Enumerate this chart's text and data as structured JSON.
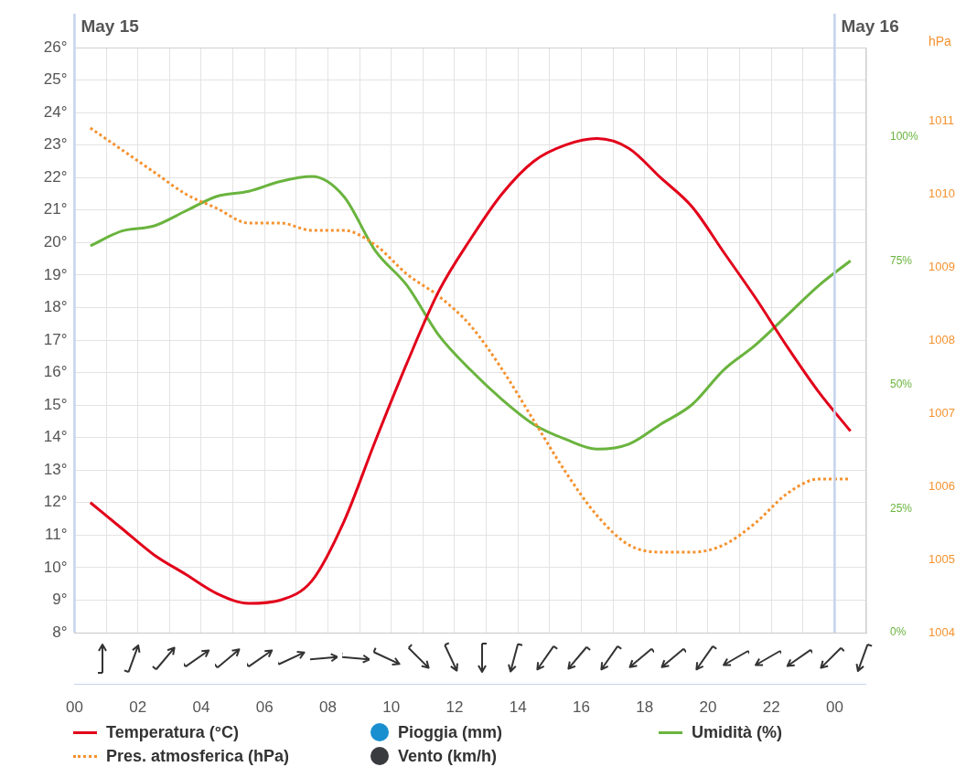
{
  "chart_data": {
    "type": "line",
    "grid": true,
    "legend": "bottom",
    "marker": "none",
    "x": [
      0.5,
      1.5,
      2.5,
      3.5,
      4.5,
      5.5,
      6.5,
      7.5,
      8.5,
      9.5,
      10.5,
      11.5,
      12.5,
      13.5,
      14.5,
      15.5,
      16.5,
      17.5,
      18.5,
      19.5,
      20.5,
      21.5,
      22.5,
      23.5,
      24.5
    ],
    "xlim": [
      0,
      25
    ],
    "xticks": [
      {
        "value": 0,
        "label": "00"
      },
      {
        "value": 1,
        "label": null
      },
      {
        "value": 2,
        "label": "02"
      },
      {
        "value": 3,
        "label": null
      },
      {
        "value": 4,
        "label": "04"
      },
      {
        "value": 5,
        "label": null
      },
      {
        "value": 6,
        "label": "06"
      },
      {
        "value": 7,
        "label": null
      },
      {
        "value": 8,
        "label": "08"
      },
      {
        "value": 9,
        "label": null
      },
      {
        "value": 10,
        "label": "10"
      },
      {
        "value": 11,
        "label": null
      },
      {
        "value": 12,
        "label": "12"
      },
      {
        "value": 13,
        "label": null
      },
      {
        "value": 14,
        "label": "14"
      },
      {
        "value": 15,
        "label": null
      },
      {
        "value": 16,
        "label": "16"
      },
      {
        "value": 17,
        "label": null
      },
      {
        "value": 18,
        "label": "18"
      },
      {
        "value": 19,
        "label": null
      },
      {
        "value": 20,
        "label": "20"
      },
      {
        "value": 21,
        "label": null
      },
      {
        "value": 22,
        "label": "22"
      },
      {
        "value": 23,
        "label": null
      },
      {
        "value": 24,
        "label": "00"
      },
      {
        "value": 25,
        "label": null
      }
    ],
    "ylim": [
      8,
      26
    ],
    "yticks": [
      {
        "value": 8,
        "label": "8°"
      },
      {
        "value": 9,
        "label": "9°"
      },
      {
        "value": 10,
        "label": "10°"
      },
      {
        "value": 11,
        "label": "11°"
      },
      {
        "value": 12,
        "label": "12°"
      },
      {
        "value": 13,
        "label": "13°"
      },
      {
        "value": 14,
        "label": "14°"
      },
      {
        "value": 15,
        "label": "15°"
      },
      {
        "value": 16,
        "label": "16°"
      },
      {
        "value": 17,
        "label": "17°"
      },
      {
        "value": 18,
        "label": "18°"
      },
      {
        "value": 19,
        "label": "19°"
      },
      {
        "value": 20,
        "label": "20°"
      },
      {
        "value": 21,
        "label": "21°"
      },
      {
        "value": 22,
        "label": "22°"
      },
      {
        "value": 23,
        "label": "23°"
      },
      {
        "value": 24,
        "label": "24°"
      },
      {
        "value": 25,
        "label": "25°"
      },
      {
        "value": 26,
        "label": "26°"
      }
    ],
    "y2label": "hPa",
    "y2lim": [
      1004,
      1012
    ],
    "y2ticks": [
      1004,
      1005,
      1006,
      1007,
      1008,
      1009,
      1010,
      1011
    ],
    "y3lim": [
      0,
      118
    ],
    "y3ticks": [
      {
        "value": 0,
        "label": "0%"
      },
      {
        "value": 25,
        "label": "25%"
      },
      {
        "value": 50,
        "label": "50%"
      },
      {
        "value": 75,
        "label": "75%"
      },
      {
        "value": 100,
        "label": "100%"
      }
    ],
    "annotations": [
      "May 15"
    ],
    "ref_lines": [
      {
        "axis": "x",
        "value": 24,
        "label": "May 16",
        "color": "#c5d3ec"
      }
    ],
    "series": [
      {
        "name": "Temperatura (°C)",
        "color": "#e2001a",
        "values": [
          12.0,
          11.2,
          10.4,
          9.8,
          9.2,
          8.9,
          9.0,
          9.6,
          11.4,
          13.9,
          16.3,
          18.5,
          20.1,
          21.5,
          22.5,
          23.0,
          23.2,
          22.9,
          22.0,
          21.1,
          19.7,
          18.3,
          16.8,
          15.4,
          14.2
        ]
      },
      {
        "name": "Pres. atmosferica (hPa)",
        "color": "#f5922f",
        "axis": "y2",
        "line_style": "dotted",
        "values": [
          1010.9,
          1010.6,
          1010.3,
          1010.0,
          1009.8,
          1009.6,
          1009.6,
          1009.5,
          1009.5,
          1009.3,
          1008.9,
          1008.6,
          1008.2,
          1007.6,
          1006.9,
          1006.2,
          1005.6,
          1005.2,
          1005.1,
          1005.1,
          1005.2,
          1005.5,
          1005.9,
          1006.1,
          1006.1
        ]
      },
      {
        "name": "Pioggia (mm)",
        "color": "#1a8fd0",
        "type": "scatter",
        "marker": "circle",
        "values": [
          null,
          null,
          null,
          null,
          null,
          null,
          null,
          null,
          null,
          null,
          null,
          null,
          null,
          null,
          null,
          null,
          null,
          null,
          null,
          null,
          null,
          null,
          null,
          null,
          null
        ]
      },
      {
        "name": "Vento (km/h)",
        "color": "#3a3b3f",
        "type": "scatter",
        "marker": "circle",
        "values": [
          null,
          null,
          null,
          null,
          null,
          null,
          null,
          null,
          null,
          null,
          null,
          null,
          null,
          null,
          null,
          null,
          null,
          null,
          null,
          null,
          null,
          null,
          null,
          null,
          null
        ]
      },
      {
        "name": "Umidità (%)",
        "color": "#6ab43e",
        "axis": "y3",
        "values": [
          78,
          81,
          82,
          85,
          88,
          89,
          91,
          92,
          88,
          77,
          70,
          60,
          53,
          47,
          42,
          39,
          37,
          38,
          42,
          46,
          53,
          58,
          64,
          70,
          75
        ]
      }
    ]
  }
}
